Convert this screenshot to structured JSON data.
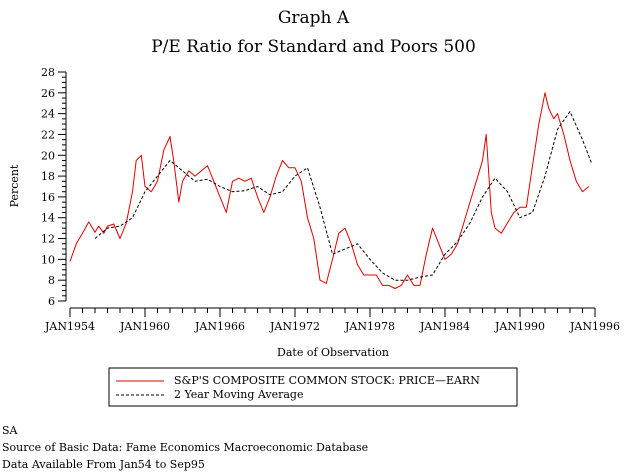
{
  "chart_data": {
    "type": "line",
    "title": "Graph A",
    "subtitle": "P/E Ratio for Standard and Poors 500",
    "xlabel": "Date of Observation",
    "ylabel": "Percent",
    "xlim": [
      1954.0,
      1996.0
    ],
    "ylim": [
      6,
      28
    ],
    "yticks": [
      6,
      8,
      10,
      12,
      14,
      16,
      18,
      20,
      22,
      24,
      26,
      28
    ],
    "xticks": [
      {
        "value": 1954,
        "label": "JAN1954"
      },
      {
        "value": 1960,
        "label": "JAN1960"
      },
      {
        "value": 1966,
        "label": "JAN1966"
      },
      {
        "value": 1972,
        "label": "JAN1972"
      },
      {
        "value": 1978,
        "label": "JAN1978"
      },
      {
        "value": 1984,
        "label": "JAN1984"
      },
      {
        "value": 1990,
        "label": "JAN1990"
      },
      {
        "value": 1996,
        "label": "JAN1996"
      }
    ],
    "series": [
      {
        "name": "S&P'S COMPOSITE COMMON STOCK: PRICE—EARN",
        "style": "solid",
        "color": "#e00000",
        "x": [
          1954.0,
          1954.5,
          1955.0,
          1955.5,
          1956.0,
          1956.3,
          1956.7,
          1957.0,
          1957.5,
          1958.0,
          1958.5,
          1959.0,
          1959.3,
          1959.7,
          1960.0,
          1960.5,
          1961.0,
          1961.5,
          1962.0,
          1962.3,
          1962.7,
          1963.0,
          1963.5,
          1964.0,
          1964.5,
          1965.0,
          1965.5,
          1966.0,
          1966.5,
          1967.0,
          1967.5,
          1968.0,
          1968.5,
          1969.0,
          1969.5,
          1970.0,
          1970.5,
          1971.0,
          1971.5,
          1972.0,
          1972.5,
          1973.0,
          1973.5,
          1974.0,
          1974.5,
          1975.0,
          1975.5,
          1976.0,
          1976.5,
          1977.0,
          1977.5,
          1978.0,
          1978.5,
          1979.0,
          1979.5,
          1980.0,
          1980.5,
          1981.0,
          1981.5,
          1982.0,
          1982.5,
          1983.0,
          1983.5,
          1984.0,
          1984.5,
          1985.0,
          1985.5,
          1986.0,
          1986.5,
          1987.0,
          1987.3,
          1987.7,
          1988.0,
          1988.5,
          1989.0,
          1989.5,
          1990.0,
          1990.5,
          1991.0,
          1991.5,
          1992.0,
          1992.3,
          1992.7,
          1993.0,
          1993.5,
          1994.0,
          1994.5,
          1995.0,
          1995.5
        ],
        "y": [
          9.8,
          11.5,
          12.5,
          13.6,
          12.6,
          13.2,
          12.5,
          13.2,
          13.4,
          12.0,
          13.5,
          16.5,
          19.5,
          20.0,
          17.0,
          16.5,
          17.5,
          20.5,
          21.8,
          19.5,
          15.5,
          17.5,
          18.5,
          18.0,
          18.5,
          19.0,
          17.5,
          16.0,
          14.5,
          17.5,
          17.8,
          17.5,
          17.8,
          16.0,
          14.5,
          16.0,
          18.0,
          19.5,
          18.8,
          18.8,
          17.5,
          14.0,
          12.0,
          8.0,
          7.7,
          10.0,
          12.5,
          13.0,
          11.5,
          9.5,
          8.5,
          8.5,
          8.5,
          7.5,
          7.5,
          7.2,
          7.5,
          8.5,
          7.5,
          7.5,
          10.5,
          13.0,
          11.5,
          10.0,
          10.5,
          11.5,
          13.5,
          15.5,
          17.5,
          19.5,
          22.0,
          14.5,
          13.0,
          12.5,
          13.5,
          14.5,
          15.0,
          15.0,
          19.0,
          23.0,
          26.0,
          24.5,
          23.5,
          24.0,
          22.0,
          19.5,
          17.5,
          16.5,
          17.0
        ]
      },
      {
        "name": "2 Year Moving Average",
        "style": "dashed",
        "color": "#000000",
        "x": [
          1954.0,
          1955.0,
          1956.0,
          1957.0,
          1958.0,
          1959.0,
          1960.0,
          1961.0,
          1962.0,
          1963.0,
          1964.0,
          1965.0,
          1966.0,
          1967.0,
          1968.0,
          1969.0,
          1970.0,
          1971.0,
          1972.0,
          1973.0,
          1974.0,
          1975.0,
          1976.0,
          1977.0,
          1978.0,
          1979.0,
          1980.0,
          1981.0,
          1982.0,
          1983.0,
          1984.0,
          1985.0,
          1986.0,
          1987.0,
          1988.0,
          1989.0,
          1990.0,
          1991.0,
          1992.0,
          1993.0,
          1994.0,
          1995.0,
          1995.7
        ],
        "y": [
          null,
          null,
          12.0,
          13.0,
          13.2,
          14.0,
          16.5,
          18.0,
          19.5,
          18.5,
          17.5,
          17.7,
          17.0,
          16.5,
          16.6,
          17.0,
          16.2,
          16.5,
          18.0,
          18.8,
          15.0,
          10.5,
          11.0,
          11.5,
          10.0,
          8.7,
          8.0,
          8.0,
          8.3,
          8.5,
          10.5,
          11.7,
          13.5,
          16.0,
          17.8,
          16.5,
          14.0,
          14.5,
          18.0,
          22.5,
          24.2,
          21.5,
          19.3
        ]
      }
    ],
    "legend_position": "below",
    "grid": false
  },
  "notes": [
    "SA",
    "Source of Basic Data: Fame Economics Macroeconomic Database",
    "Data Available From Jan54 to Sep95"
  ]
}
